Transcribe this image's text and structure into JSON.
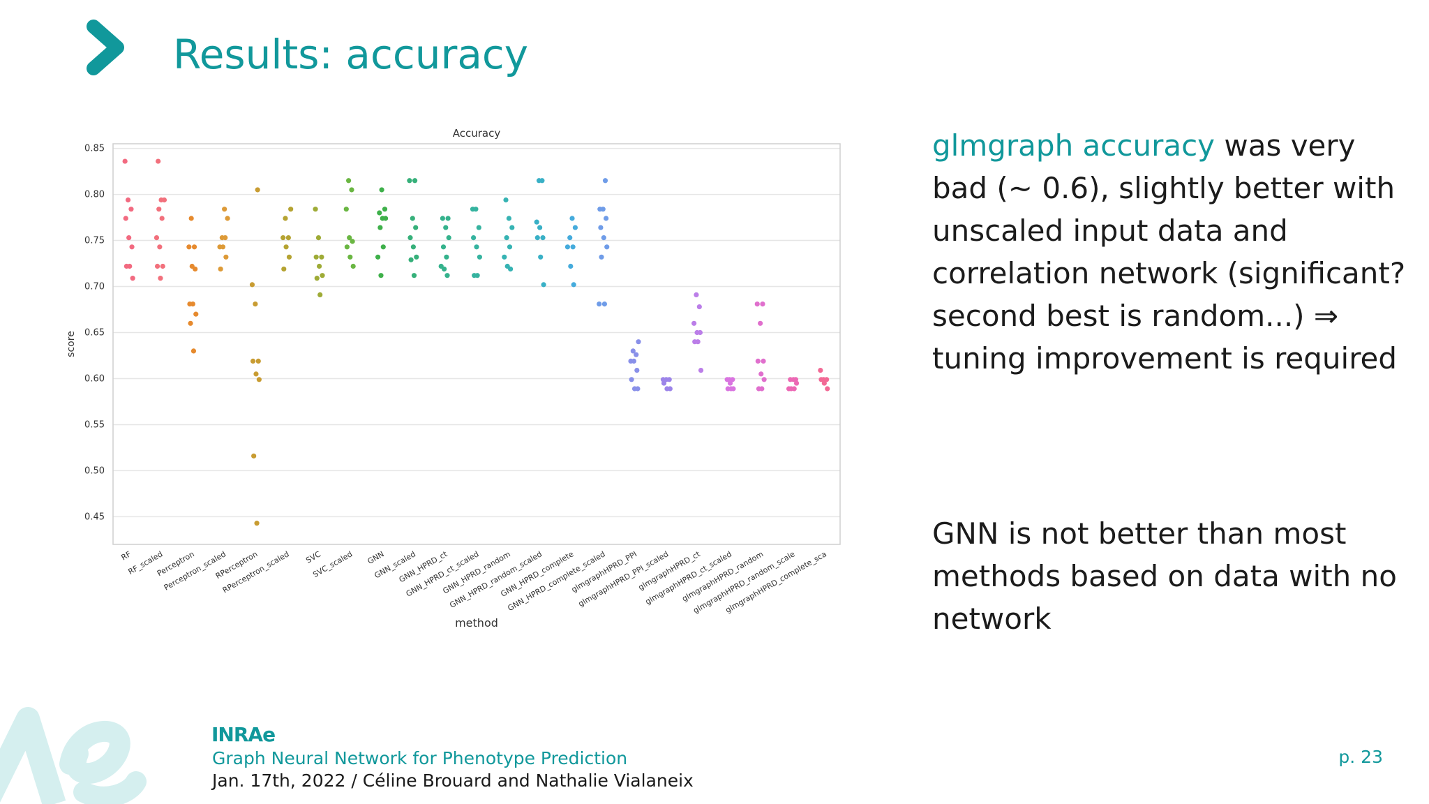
{
  "slide": {
    "title": "Results: accuracy",
    "text1_highlight": "glmgraph accuracy",
    "text1_rest": " was very bad (∼ 0.6), slightly better with unscaled input data and correlation network (significant? second best is random...) ⇒ tuning improvement is required",
    "text2": "GNN is not better than most methods based on data with no network",
    "logo": "INRAe",
    "footer_title": "Graph Neural Network for Phenotype Prediction",
    "footer_subtitle": "Jan. 17th, 2022 / Céline Brouard and Nathalie Vialaneix",
    "page_number": "p. 23",
    "accent_color": "#11989b"
  },
  "chart_data": {
    "type": "scatter",
    "title": "Accuracy",
    "xlabel": "method",
    "ylabel": "score",
    "ylim": [
      0.42,
      0.855
    ],
    "yticks": [
      0.45,
      0.5,
      0.55,
      0.6,
      0.65,
      0.7,
      0.75,
      0.8,
      0.85
    ],
    "grid": true,
    "categories": [
      "RF",
      "RF_scaled",
      "Perceptron",
      "Perceptron_scaled",
      "RPerceptron",
      "RPerceptron_scaled",
      "SVC",
      "SVC_scaled",
      "GNN",
      "GNN_scaled",
      "GNN_HPRD_ct",
      "GNN_HPRD_ct_scaled",
      "GNN_HPRD_random",
      "GNN_HPRD_random_scaled",
      "GNN_HPRD_complete",
      "GNN_HPRD_complete_scaled",
      "glmgraphHPRD_PPI",
      "glmgraphHPRD_PPI_scaled",
      "glmgraphHPRD_ct",
      "glmgraphHPRD_ct_scaled",
      "glmgraphHPRD_random",
      "glmgraphHPRD_random_scale",
      "glmgraphHPRD_complete_sca"
    ],
    "colors": [
      "#f26a80",
      "#f2707c",
      "#e68a2e",
      "#dd9a37",
      "#c89c32",
      "#b5a332",
      "#9eab36",
      "#6ab642",
      "#3eb04a",
      "#36b07a",
      "#34b28c",
      "#35b39f",
      "#36b3b3",
      "#39b0c6",
      "#45abdc",
      "#6f9ce8",
      "#8990e9",
      "#9c84e9",
      "#bb7ee8",
      "#d974e0",
      "#e06fcd",
      "#ec68b4",
      "#f26995"
    ],
    "series": [
      {
        "values": [
          0.836,
          0.794,
          0.784,
          0.774,
          0.753,
          0.743,
          0.722,
          0.722,
          0.709
        ]
      },
      {
        "values": [
          0.836,
          0.794,
          0.794,
          0.784,
          0.774,
          0.753,
          0.743,
          0.722,
          0.722,
          0.709
        ]
      },
      {
        "values": [
          0.774,
          0.743,
          0.743,
          0.722,
          0.719,
          0.681,
          0.681,
          0.67,
          0.66,
          0.63
        ]
      },
      {
        "values": [
          0.784,
          0.774,
          0.753,
          0.753,
          0.743,
          0.743,
          0.732,
          0.719
        ]
      },
      {
        "values": [
          0.805,
          0.702,
          0.681,
          0.619,
          0.619,
          0.605,
          0.599,
          0.516,
          0.443
        ]
      },
      {
        "values": [
          0.784,
          0.774,
          0.753,
          0.753,
          0.743,
          0.732,
          0.719
        ]
      },
      {
        "values": [
          0.784,
          0.753,
          0.732,
          0.732,
          0.722,
          0.712,
          0.709,
          0.691
        ]
      },
      {
        "values": [
          0.815,
          0.805,
          0.784,
          0.753,
          0.749,
          0.743,
          0.732,
          0.722
        ]
      },
      {
        "values": [
          0.805,
          0.784,
          0.78,
          0.774,
          0.774,
          0.764,
          0.743,
          0.732,
          0.712
        ]
      },
      {
        "values": [
          0.815,
          0.815,
          0.774,
          0.764,
          0.753,
          0.743,
          0.732,
          0.729,
          0.712
        ]
      },
      {
        "values": [
          0.774,
          0.774,
          0.764,
          0.753,
          0.743,
          0.732,
          0.722,
          0.719,
          0.712
        ]
      },
      {
        "values": [
          0.784,
          0.784,
          0.764,
          0.753,
          0.743,
          0.732,
          0.712,
          0.712
        ]
      },
      {
        "values": [
          0.794,
          0.774,
          0.764,
          0.753,
          0.743,
          0.732,
          0.722,
          0.719
        ]
      },
      {
        "values": [
          0.815,
          0.815,
          0.77,
          0.764,
          0.753,
          0.753,
          0.732,
          0.702
        ]
      },
      {
        "values": [
          0.774,
          0.764,
          0.753,
          0.743,
          0.743,
          0.722,
          0.702
        ]
      },
      {
        "values": [
          0.815,
          0.784,
          0.784,
          0.774,
          0.764,
          0.753,
          0.743,
          0.732,
          0.681,
          0.681
        ]
      },
      {
        "values": [
          0.64,
          0.63,
          0.626,
          0.619,
          0.619,
          0.609,
          0.599,
          0.589,
          0.589
        ]
      },
      {
        "values": [
          0.599,
          0.599,
          0.599,
          0.595,
          0.589,
          0.589
        ]
      },
      {
        "values": [
          0.691,
          0.678,
          0.66,
          0.65,
          0.65,
          0.64,
          0.64,
          0.609
        ]
      },
      {
        "values": [
          0.599,
          0.599,
          0.599,
          0.595,
          0.589,
          0.589,
          0.589
        ]
      },
      {
        "values": [
          0.681,
          0.681,
          0.66,
          0.619,
          0.619,
          0.605,
          0.599,
          0.589,
          0.589
        ]
      },
      {
        "values": [
          0.599,
          0.599,
          0.599,
          0.595,
          0.589,
          0.589,
          0.589
        ]
      },
      {
        "values": [
          0.609,
          0.599,
          0.599,
          0.599,
          0.595,
          0.589
        ]
      }
    ]
  }
}
